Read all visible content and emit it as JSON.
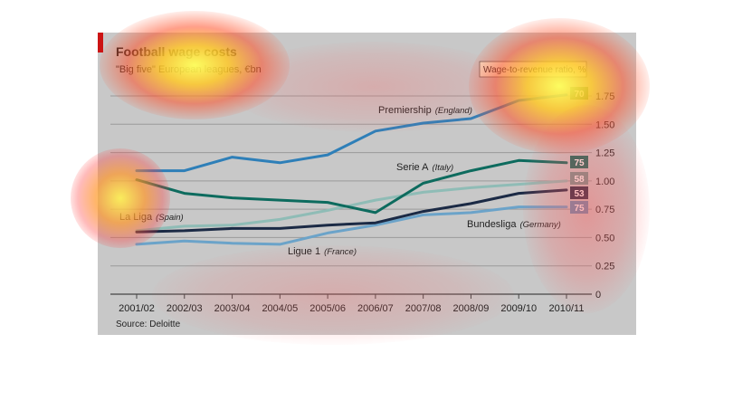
{
  "chart_data": {
    "type": "line",
    "title": "Football wage costs",
    "subtitle": "\"Big five\" European leagues, €bn",
    "source": "Source: Deloitte",
    "categories": [
      "2001/02",
      "2002/03",
      "2003/04",
      "2004/05",
      "2005/06",
      "2006/07",
      "2007/08",
      "2008/09",
      "2009/10",
      "2010/11"
    ],
    "yticks": [
      "0",
      "0.25",
      "0.50",
      "0.75",
      "1.00",
      "1.25",
      "1.50",
      "1.75"
    ],
    "ylim": [
      0,
      1.85
    ],
    "ratio_label": "Wage-to-revenue ratio, %",
    "series": [
      {
        "name": "Premiership",
        "country": "(England)",
        "color": "#2e7fb8",
        "ratio": "70",
        "ratio_bg": "#3a7a3a",
        "values": [
          1.09,
          1.09,
          1.21,
          1.16,
          1.23,
          1.44,
          1.51,
          1.55,
          1.71,
          1.76
        ]
      },
      {
        "name": "Serie A",
        "country": "(Italy)",
        "color": "#0d6b5e",
        "ratio": "75",
        "ratio_bg": "#0d6b5e",
        "values": [
          1.01,
          0.89,
          0.85,
          0.83,
          0.81,
          0.72,
          0.98,
          1.09,
          1.18,
          1.16
        ]
      },
      {
        "name": "La Liga",
        "country": "(Spain)",
        "color": "#8fbcb6",
        "ratio": "58",
        "ratio_bg": "#6e9692",
        "values": [
          0.56,
          0.6,
          0.61,
          0.66,
          0.74,
          0.83,
          0.9,
          0.94,
          0.97,
          1.0
        ]
      },
      {
        "name": "Bundesliga",
        "country": "(Germany)",
        "color": "#1b2a45",
        "ratio": "53",
        "ratio_bg": "#1b2a45",
        "values": [
          0.55,
          0.56,
          0.58,
          0.58,
          0.61,
          0.63,
          0.73,
          0.8,
          0.89,
          0.92
        ]
      },
      {
        "name": "Ligue 1",
        "country": "(France)",
        "color": "#6ba3c9",
        "ratio": "75",
        "ratio_bg": "#5d8fb5",
        "values": [
          0.44,
          0.47,
          0.45,
          0.44,
          0.54,
          0.61,
          0.7,
          0.72,
          0.77,
          0.77
        ]
      }
    ],
    "grid": true
  }
}
